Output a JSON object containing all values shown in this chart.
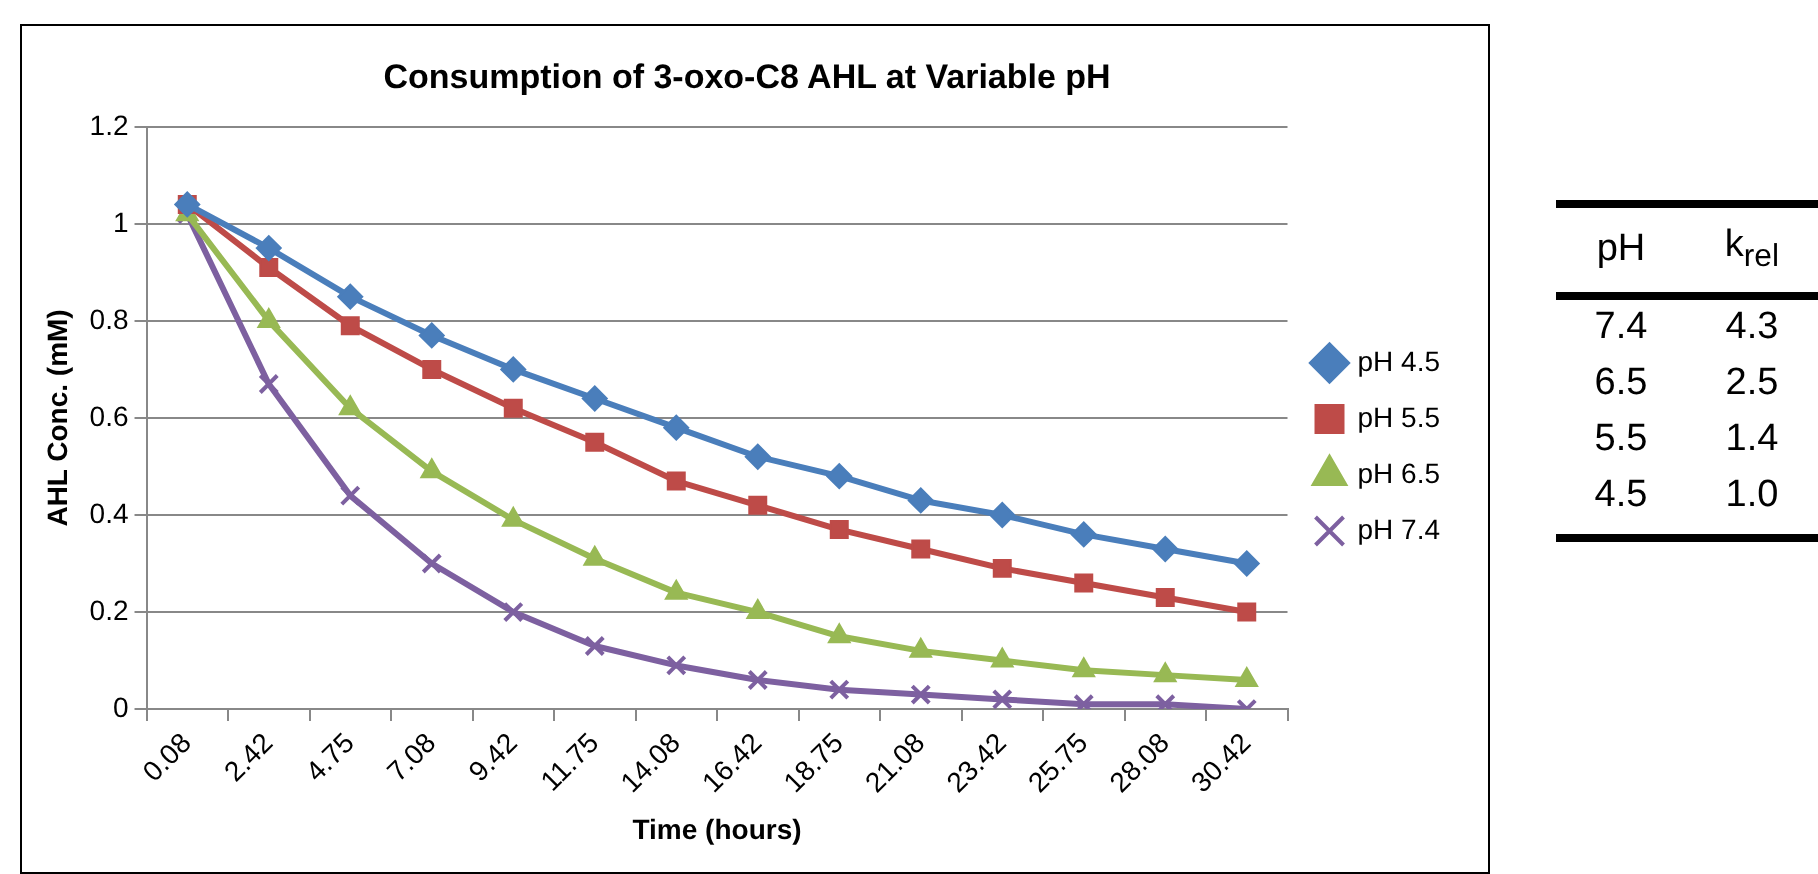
{
  "chart_data": [
    {
      "type": "line",
      "title": "Consumption of 3-oxo-C8 AHL at Variable pH",
      "xlabel": "Time (hours)",
      "ylabel": "AHL Conc. (mM)",
      "categories": [
        "0.08",
        "2.42",
        "4.75",
        "7.08",
        "9.42",
        "11.75",
        "14.08",
        "16.42",
        "18.75",
        "21.08",
        "23.42",
        "25.75",
        "28.08",
        "30.42"
      ],
      "series": [
        {
          "name": "pH 4.5",
          "color": "#4a7ebb",
          "marker": "diamond",
          "values": [
            1.04,
            0.95,
            0.85,
            0.77,
            0.7,
            0.64,
            0.58,
            0.52,
            0.48,
            0.43,
            0.4,
            0.36,
            0.33,
            0.3
          ]
        },
        {
          "name": "pH 5.5",
          "color": "#be4b48",
          "marker": "square",
          "values": [
            1.04,
            0.91,
            0.79,
            0.7,
            0.62,
            0.55,
            0.47,
            0.42,
            0.37,
            0.33,
            0.29,
            0.26,
            0.23,
            0.2
          ]
        },
        {
          "name": "pH 6.5",
          "color": "#98b954",
          "marker": "triangle",
          "values": [
            1.02,
            0.8,
            0.62,
            0.49,
            0.39,
            0.31,
            0.24,
            0.2,
            0.15,
            0.12,
            0.1,
            0.08,
            0.07,
            0.06
          ]
        },
        {
          "name": "pH 7.4",
          "color": "#7d60a0",
          "marker": "cross",
          "values": [
            1.02,
            0.67,
            0.44,
            0.3,
            0.2,
            0.13,
            0.09,
            0.06,
            0.04,
            0.03,
            0.02,
            0.01,
            0.01,
            0.0
          ]
        }
      ],
      "ylim": [
        0,
        1.2
      ],
      "yticks": [
        0,
        0.2,
        0.4,
        0.6,
        0.8,
        1,
        1.2
      ],
      "grid": "y",
      "legend": "right"
    },
    {
      "type": "other",
      "annotations": [
        "pH",
        "k$_{rel}$",
        "7.4",
        "4.3",
        "6.5",
        "2.5",
        "5.5",
        "1.4",
        "4.5",
        "1.0"
      ]
    }
  ]
}
